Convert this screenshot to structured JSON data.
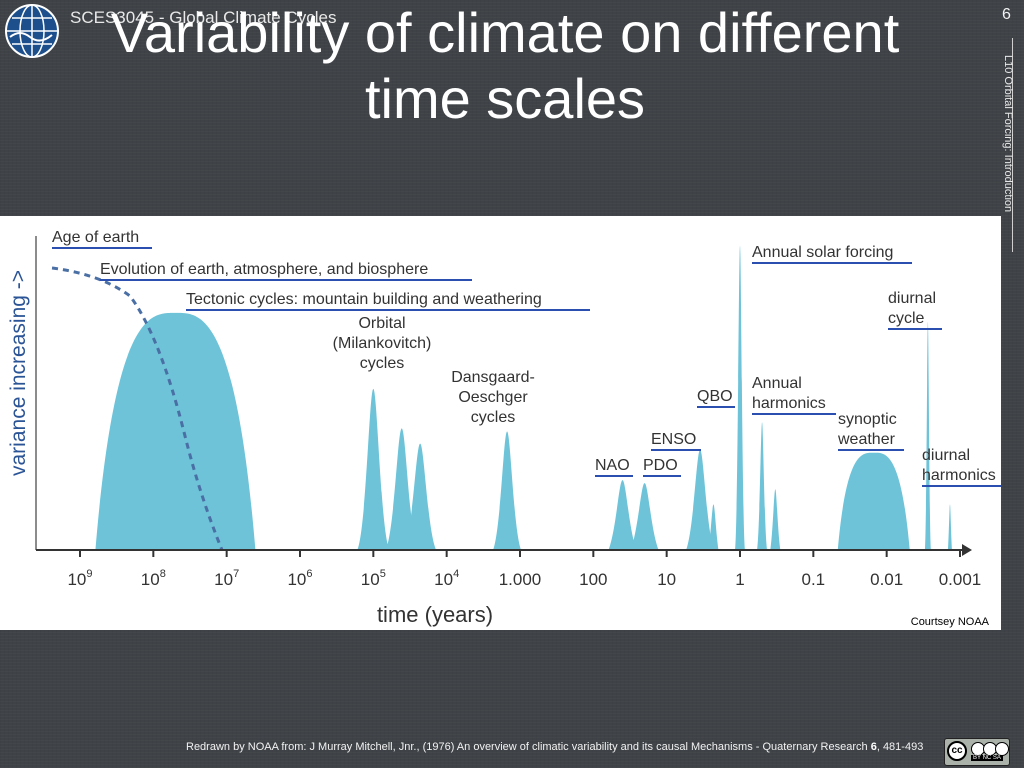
{
  "header": {
    "course": "SCES3045 - Global Climate Cycles",
    "title_line1": "Variability of climate on different",
    "title_line2": "time scales",
    "page_number": "6",
    "side_label": "L10 Orbital Forcing: Introduction"
  },
  "chart_data": {
    "type": "area",
    "title": "",
    "xlabel": "time (years)",
    "ylabel": "variance increasing ->",
    "x_ticks": [
      "10^9",
      "10^8",
      "10^7",
      "10^6",
      "10^5",
      "10^4",
      "1.000",
      "100",
      "10",
      "1",
      "0.1",
      "0.01",
      "0.001"
    ],
    "x_scale": "log10, decreasing (1e9 to 1e-3 years)",
    "annotations": [
      "Age of earth",
      "Evolution of earth, atmosphere, and biosphere",
      "Tectonic cycles: mountain building and weathering",
      "Orbital (Milankovitch) cycles",
      "Dansgaard-Oeschger cycles",
      "QBO",
      "ENSO",
      "NAO",
      "PDO",
      "Annual solar forcing",
      "Annual harmonics",
      "diurnal cycle",
      "synoptic weather",
      "diurnal harmonics"
    ],
    "series": [
      {
        "name": "Tectonic cycles",
        "peak_years": 50000000.0,
        "relative_variance": 0.78,
        "shape": "broad"
      },
      {
        "name": "Orbital (Milankovitch) cycles",
        "peaks_years": [
          100000,
          41000,
          23000
        ],
        "relative_variance": [
          0.53,
          0.4,
          0.35
        ]
      },
      {
        "name": "Dansgaard-Oeschger cycles",
        "peak_years": 1500,
        "relative_variance": 0.39
      },
      {
        "name": "NAO",
        "peak_years": 40,
        "relative_variance": 0.23
      },
      {
        "name": "PDO",
        "peak_years": 20,
        "relative_variance": 0.22
      },
      {
        "name": "ENSO",
        "peak_years": 3.5,
        "relative_variance": 0.33
      },
      {
        "name": "QBO",
        "peak_years": 2.3,
        "relative_variance": 0.15
      },
      {
        "name": "Annual solar forcing",
        "peak_years": 1,
        "relative_variance": 1.0
      },
      {
        "name": "Annual harmonics",
        "peaks_years": [
          0.5,
          0.33
        ],
        "relative_variance": [
          0.42,
          0.2
        ]
      },
      {
        "name": "synoptic weather",
        "peak_years": 0.015,
        "relative_variance": 0.32
      },
      {
        "name": "diurnal cycle",
        "peak_years": 0.00274,
        "relative_variance": 0.75
      },
      {
        "name": "diurnal harmonics",
        "peak_years": 0.00137,
        "relative_variance": 0.15
      }
    ],
    "fill_color": "#6ec3d8",
    "dashed_curve": "Age of earth (declining variance from 10^9 to 10^7 years)"
  },
  "figure": {
    "courtesy": "Courtsey NOAA"
  },
  "footer": {
    "credit_text": "Redrawn by NOAA from: J Murray Mitchell, Jnr., (1976) An overview of climatic variability and its causal Mechanisms - Quaternary Research ",
    "credit_volume": "6",
    "credit_pages": ", 481-493",
    "license_tags": "BY NC SA"
  }
}
